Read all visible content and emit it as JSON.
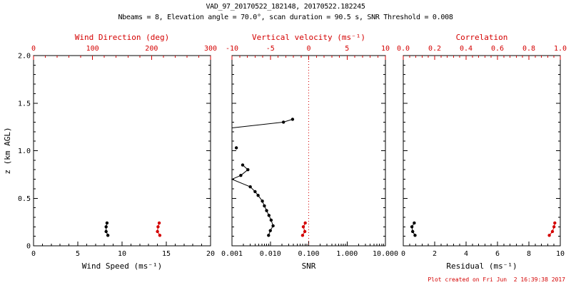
{
  "title": "VAD_97_20170522_182148, 20170522.182245",
  "subtitle": "Nbeams = 8, Elevation angle = 70.0°, scan duration = 90.5 s, SNR Threshold = 0.008",
  "footer": "Plot created on Fri Jun  2 16:39:38 2017",
  "colors": {
    "axis": "#000000",
    "red": "#d40000",
    "background": "#ffffff"
  },
  "y_axis": {
    "label": "z (km AGL)",
    "range": [
      0,
      2
    ],
    "ticks": [
      0,
      0.5,
      1.0,
      1.5,
      2.0
    ],
    "tick_labels": [
      "0",
      "0.5",
      "1.0",
      "1.5",
      "2.0"
    ]
  },
  "chart_data": [
    {
      "type": "scatter",
      "name": "wind-panel",
      "bottom_axis": {
        "label": "Wind Speed (ms⁻¹)",
        "range": [
          0,
          20
        ],
        "ticks": [
          0,
          5,
          10,
          15,
          20
        ],
        "tick_labels": [
          "0",
          "5",
          "10",
          "15",
          "20"
        ],
        "color": "#000000"
      },
      "top_axis": {
        "label": "Wind Direction (deg)",
        "range": [
          0,
          300
        ],
        "ticks": [
          0,
          100,
          200,
          300
        ],
        "tick_labels": [
          "0",
          "100",
          "200",
          "300"
        ],
        "color": "#d40000"
      },
      "series": [
        {
          "name": "wind-speed",
          "axis": "bottom",
          "color": "#000000",
          "marker": "dot",
          "line": true,
          "points": [
            [
              8.4,
              0.11
            ],
            [
              8.2,
              0.15
            ],
            [
              8.2,
              0.2
            ],
            [
              8.3,
              0.24
            ]
          ]
        },
        {
          "name": "wind-direction",
          "axis": "top",
          "color": "#d40000",
          "marker": "dot",
          "line": true,
          "points": [
            [
              214,
              0.11
            ],
            [
              210,
              0.15
            ],
            [
              211,
              0.2
            ],
            [
              213,
              0.24
            ]
          ]
        }
      ]
    },
    {
      "type": "scatter",
      "name": "snr-panel",
      "bottom_axis": {
        "label": "SNR",
        "scale": "log",
        "range": [
          0.001,
          10
        ],
        "ticks": [
          0.001,
          0.01,
          0.1,
          1,
          10
        ],
        "tick_labels": [
          "0.001",
          "0.010",
          "0.100",
          "1.000",
          "10.000"
        ],
        "color": "#000000"
      },
      "top_axis": {
        "label": "Vertical velocity (ms⁻¹)",
        "range": [
          -10,
          10
        ],
        "ticks": [
          -10,
          -5,
          0,
          5,
          10
        ],
        "tick_labels": [
          "-10",
          "-5",
          "0",
          "5",
          "10"
        ],
        "color": "#d40000"
      },
      "reference_line": {
        "axis": "top",
        "value": 0,
        "color": "#d40000",
        "style": "dotted"
      },
      "series": [
        {
          "name": "snr-profile",
          "axis": "bottom",
          "color": "#000000",
          "marker": "dot",
          "line": true,
          "segments": [
            [
              [
                0.001,
                1.24
              ],
              [
                0.022,
                1.3
              ],
              [
                0.038,
                1.33
              ]
            ],
            [
              [
                0.0013,
                1.03
              ]
            ],
            [
              [
                0.0019,
                0.85
              ],
              [
                0.0026,
                0.8
              ],
              [
                0.0017,
                0.74
              ],
              [
                0.001,
                0.7
              ],
              [
                0.003,
                0.62
              ],
              [
                0.004,
                0.57
              ],
              [
                0.0048,
                0.53
              ],
              [
                0.0062,
                0.47
              ],
              [
                0.007,
                0.42
              ],
              [
                0.008,
                0.37
              ],
              [
                0.0092,
                0.32
              ],
              [
                0.0105,
                0.27
              ],
              [
                0.0118,
                0.21
              ],
              [
                0.01,
                0.16
              ],
              [
                0.009,
                0.11
              ]
            ]
          ]
        },
        {
          "name": "vertical-velocity",
          "axis": "top",
          "color": "#d40000",
          "marker": "dot",
          "line": true,
          "points": [
            [
              -0.8,
              0.11
            ],
            [
              -0.5,
              0.15
            ],
            [
              -0.7,
              0.2
            ],
            [
              -0.45,
              0.24
            ]
          ]
        }
      ]
    },
    {
      "type": "scatter",
      "name": "residual-panel",
      "bottom_axis": {
        "label": "Residual (ms⁻¹)",
        "range": [
          0,
          10
        ],
        "ticks": [
          0,
          2,
          4,
          6,
          8,
          10
        ],
        "tick_labels": [
          "0",
          "2",
          "4",
          "6",
          "8",
          "10"
        ],
        "color": "#000000"
      },
      "top_axis": {
        "label": "Correlation",
        "range": [
          0,
          1
        ],
        "ticks": [
          0,
          0.2,
          0.4,
          0.6,
          0.8,
          1.0
        ],
        "tick_labels": [
          "0.0",
          "0.2",
          "0.4",
          "0.6",
          "0.8",
          "1.0"
        ],
        "color": "#d40000"
      },
      "series": [
        {
          "name": "residual",
          "axis": "bottom",
          "color": "#000000",
          "marker": "dot",
          "line": true,
          "points": [
            [
              0.75,
              0.11
            ],
            [
              0.6,
              0.15
            ],
            [
              0.55,
              0.2
            ],
            [
              0.7,
              0.24
            ]
          ]
        },
        {
          "name": "correlation",
          "axis": "top",
          "color": "#d40000",
          "marker": "dot",
          "line": true,
          "points": [
            [
              0.93,
              0.11
            ],
            [
              0.95,
              0.15
            ],
            [
              0.96,
              0.2
            ],
            [
              0.965,
              0.24
            ]
          ]
        }
      ]
    }
  ]
}
